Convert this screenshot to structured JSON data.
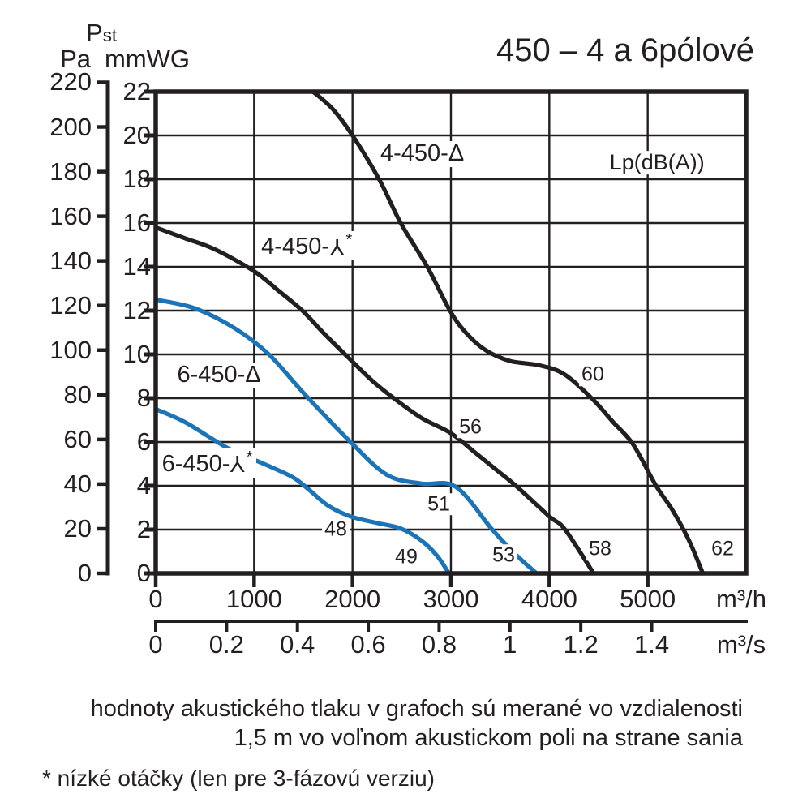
{
  "header": {
    "pst_main": "P",
    "pst_sub": "st",
    "pa_unit": "Pa",
    "mmwg_unit": "mmWG",
    "title": "450 – 4 a 6pólové"
  },
  "footer": {
    "line1": "hodnoty akustického tlaku v grafoch sú merané vo vzdialenosti",
    "line2": "1,5 m vo voľnom akustickom poli na strane sania",
    "note": "* nízké otáčky (len pre 3-fázovú verziu)"
  },
  "chart_data": {
    "type": "line",
    "title": "450 – 4 a 6pólové",
    "x_axis": {
      "unit": "m³/h",
      "ticks": [
        0,
        1000,
        2000,
        3000,
        4000,
        5000
      ],
      "max": 6000,
      "grid": true
    },
    "x_axis_secondary": {
      "unit": "m³/s",
      "ticks": [
        0,
        0.2,
        0.4,
        0.6,
        0.8,
        1,
        1.2,
        1.4
      ],
      "m3h_per_m3s": 3600
    },
    "y_axis": {
      "unit": "mmWG",
      "ticks": [
        0,
        2,
        4,
        6,
        8,
        10,
        12,
        14,
        16,
        18,
        20,
        22
      ],
      "max": 22,
      "grid": true
    },
    "y_axis_secondary": {
      "unit": "Pa",
      "ticks": [
        0,
        20,
        40,
        60,
        80,
        100,
        120,
        140,
        160,
        180,
        200,
        220
      ],
      "pa_per_mmwg": 9.81
    },
    "colors": {
      "black": "#231f20",
      "blue": "#1b74b8"
    },
    "series": [
      {
        "id": "4-450-D",
        "name": "4-450-Δ",
        "color": "#231f20",
        "points": [
          [
            1600,
            22
          ],
          [
            1800,
            21.2
          ],
          [
            2000,
            20
          ],
          [
            2270,
            18
          ],
          [
            2490,
            16
          ],
          [
            2760,
            14
          ],
          [
            2990,
            12
          ],
          [
            3150,
            11
          ],
          [
            3350,
            10.2
          ],
          [
            3600,
            9.7
          ],
          [
            3900,
            9.5
          ],
          [
            4150,
            9.1
          ],
          [
            4430,
            8
          ],
          [
            4650,
            6.9
          ],
          [
            4850,
            5.9
          ],
          [
            5085,
            4
          ],
          [
            5250,
            2.9
          ],
          [
            5420,
            1.5
          ],
          [
            5560,
            0
          ]
        ]
      },
      {
        "id": "4-450-Y",
        "name": "4-450-⅄*",
        "color": "#231f20",
        "points": [
          [
            0,
            15.8
          ],
          [
            300,
            15.3
          ],
          [
            600,
            14.8
          ],
          [
            1000,
            13.8
          ],
          [
            1250,
            12.9
          ],
          [
            1490,
            12
          ],
          [
            1700,
            11
          ],
          [
            1970,
            9.8
          ],
          [
            2200,
            8.8
          ],
          [
            2420,
            8
          ],
          [
            2700,
            7.1
          ],
          [
            3000,
            6.4
          ],
          [
            3250,
            5.5
          ],
          [
            3470,
            4.7
          ],
          [
            3660,
            4
          ],
          [
            4000,
            2.6
          ],
          [
            4160,
            2
          ],
          [
            4450,
            0
          ]
        ]
      },
      {
        "id": "6-450-D",
        "name": "6-450-Δ",
        "color": "#1b74b8",
        "points": [
          [
            0,
            12.5
          ],
          [
            400,
            12.1
          ],
          [
            800,
            11.2
          ],
          [
            1150,
            10
          ],
          [
            1510,
            8.2
          ],
          [
            1980,
            6
          ],
          [
            2350,
            4.5
          ],
          [
            2700,
            4.1
          ],
          [
            3050,
            3.95
          ],
          [
            3420,
            2
          ],
          [
            3650,
            0.9
          ],
          [
            3870,
            0
          ]
        ]
      },
      {
        "id": "6-450-Y",
        "name": "6-450-⅄*",
        "color": "#1b74b8",
        "points": [
          [
            0,
            7.5
          ],
          [
            300,
            6.9
          ],
          [
            740,
            5.7
          ],
          [
            1100,
            5
          ],
          [
            1390,
            4.4
          ],
          [
            1550,
            3.85
          ],
          [
            1750,
            3.1
          ],
          [
            1980,
            2.6
          ],
          [
            2250,
            2.3
          ],
          [
            2490,
            2.05
          ],
          [
            2700,
            1.5
          ],
          [
            2860,
            0.8
          ],
          [
            2980,
            0
          ]
        ]
      }
    ],
    "curve_labels": [
      {
        "series_id": "4-450-D",
        "prefix": "4-450-",
        "symbol": "delta",
        "star": false,
        "x": 2250,
        "y": 19.15
      },
      {
        "series_id": "4-450-Y",
        "prefix": "4-450-",
        "symbol": "wye",
        "star": true,
        "x": 1040,
        "y": 14.95
      },
      {
        "series_id": "6-450-D",
        "prefix": "6-450-",
        "symbol": "delta",
        "star": false,
        "x": 185,
        "y": 9.05
      },
      {
        "series_id": "6-450-Y",
        "prefix": "6-450-",
        "symbol": "wye",
        "star": true,
        "x": 30,
        "y": 5.05
      }
    ],
    "annotations": [
      {
        "text": "Lp(dB(A))",
        "x": 5095,
        "y": 18.75
      }
    ],
    "noise_db_labels": [
      {
        "value": "60",
        "x": 4442,
        "y": 9.07
      },
      {
        "value": "56",
        "x": 3198,
        "y": 6.67
      },
      {
        "value": "51",
        "x": 2877,
        "y": 3.15
      },
      {
        "value": "48",
        "x": 1830,
        "y": 2.0
      },
      {
        "value": "49",
        "x": 2547,
        "y": 0.74
      },
      {
        "value": "53",
        "x": 3536,
        "y": 0.81
      },
      {
        "value": "58",
        "x": 4517,
        "y": 1.11
      },
      {
        "value": "62",
        "x": 5761,
        "y": 1.11
      }
    ]
  }
}
